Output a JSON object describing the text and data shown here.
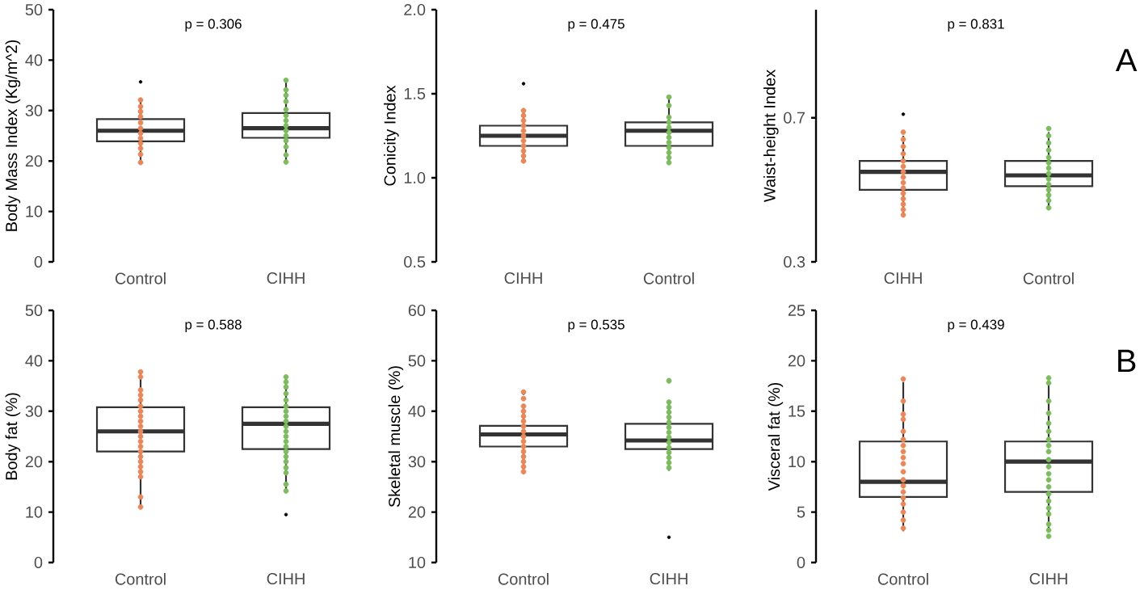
{
  "chart_data": [
    {
      "type": "box",
      "title": "p = 0.306",
      "ylabel": "Body Mass Index (Kg/m^2)",
      "categories": [
        "Control",
        "CIHH"
      ],
      "ylim": [
        0,
        50
      ],
      "yticks": [
        0,
        10,
        20,
        30,
        40,
        50
      ],
      "marker": "circle",
      "boxes": [
        {
          "low": 19.8,
          "q1": 23.9,
          "median": 26.0,
          "q3": 28.3,
          "high": 32.1,
          "outliers": [
            35.7
          ]
        },
        {
          "low": 19.7,
          "q1": 24.6,
          "median": 26.5,
          "q3": 29.5,
          "high": 36.1
        }
      ],
      "series": [
        {
          "type": "scatter",
          "color": "#e8875a",
          "x": [
            "Control",
            "Control",
            "Control",
            "Control",
            "Control",
            "Control",
            "Control",
            "Control",
            "Control",
            "Control",
            "Control",
            "Control"
          ],
          "values": [
            32.1,
            30.8,
            29.8,
            28.8,
            27.6,
            26.5,
            25.5,
            24.5,
            23.5,
            22.5,
            21.3,
            19.7
          ]
        },
        {
          "type": "scatter",
          "color": "#7dbb5f",
          "x": [
            "CIHH",
            "CIHH",
            "CIHH",
            "CIHH",
            "CIHH",
            "CIHH",
            "CIHH",
            "CIHH",
            "CIHH",
            "CIHH",
            "CIHH",
            "CIHH",
            "CIHH",
            "CIHH"
          ],
          "values": [
            36.0,
            34.1,
            33.0,
            31.8,
            30.2,
            29.0,
            28.0,
            27.0,
            26.0,
            25.0,
            24.0,
            22.8,
            21.2,
            19.8
          ]
        }
      ]
    },
    {
      "type": "box",
      "title": "p = 0.475",
      "ylabel": "Conicity Index",
      "categories": [
        "CIHH",
        "Control"
      ],
      "ylim": [
        0.5,
        2.0
      ],
      "yticks": [
        0.5,
        {
          "value": 1,
          "label": "1.0"
        },
        1.5,
        {
          "value": 2,
          "label": "2.0"
        }
      ],
      "marker": "circle",
      "boxes": [
        {
          "low": 1.1,
          "q1": 1.19,
          "median": 1.25,
          "q3": 1.31,
          "high": 1.4,
          "outliers": [
            1.56
          ]
        },
        {
          "low": 1.1,
          "q1": 1.19,
          "median": 1.28,
          "q3": 1.33,
          "high": 1.48
        }
      ],
      "series": [
        {
          "type": "scatter",
          "color": "#e8875a",
          "x": [
            "CIHH",
            "CIHH",
            "CIHH",
            "CIHH",
            "CIHH",
            "CIHH",
            "CIHH",
            "CIHH",
            "CIHH",
            "CIHH",
            "CIHH"
          ],
          "values": [
            1.4,
            1.37,
            1.34,
            1.31,
            1.28,
            1.25,
            1.22,
            1.19,
            1.16,
            1.13,
            1.1
          ]
        },
        {
          "type": "scatter",
          "color": "#7dbb5f",
          "x": [
            "Control",
            "Control",
            "Control",
            "Control",
            "Control",
            "Control",
            "Control",
            "Control",
            "Control",
            "Control",
            "Control",
            "Control"
          ],
          "values": [
            1.48,
            1.43,
            1.36,
            1.33,
            1.3,
            1.27,
            1.24,
            1.21,
            1.18,
            1.15,
            1.12,
            1.09
          ]
        }
      ]
    },
    {
      "type": "box",
      "title": "p = 0.831",
      "ylabel": "Waist-height Index",
      "categories": [
        "CIHH",
        "Control"
      ],
      "ylim": [
        0.3,
        1.0
      ],
      "yticks": [
        0.3,
        0.7
      ],
      "marker": "circle",
      "annotations": [
        "A"
      ],
      "boxes": [
        {
          "low": 0.43,
          "q1": 0.5,
          "median": 0.55,
          "q3": 0.58,
          "high": 0.65,
          "outliers": [
            0.71
          ]
        },
        {
          "low": 0.45,
          "q1": 0.51,
          "median": 0.54,
          "q3": 0.58,
          "high": 0.66
        }
      ],
      "series": [
        {
          "type": "scatter",
          "color": "#e8875a",
          "x": [
            "CIHH",
            "CIHH",
            "CIHH",
            "CIHH",
            "CIHH",
            "CIHH",
            "CIHH",
            "CIHH",
            "CIHH",
            "CIHH",
            "CIHH",
            "CIHH",
            "CIHH",
            "CIHH",
            "CIHH"
          ],
          "values": [
            0.66,
            0.64,
            0.62,
            0.6,
            0.58,
            0.565,
            0.55,
            0.535,
            0.52,
            0.505,
            0.49,
            0.475,
            0.46,
            0.445,
            0.43
          ]
        },
        {
          "type": "scatter",
          "color": "#7dbb5f",
          "x": [
            "Control",
            "Control",
            "Control",
            "Control",
            "Control",
            "Control",
            "Control",
            "Control",
            "Control",
            "Control",
            "Control",
            "Control",
            "Control",
            "Control"
          ],
          "values": [
            0.67,
            0.65,
            0.63,
            0.61,
            0.59,
            0.575,
            0.56,
            0.545,
            0.53,
            0.515,
            0.5,
            0.485,
            0.47,
            0.45
          ]
        }
      ]
    },
    {
      "type": "box",
      "title": "p = 0.588",
      "ylabel": "Body fat (%)",
      "categories": [
        "Control",
        "CIHH"
      ],
      "ylim": [
        0,
        50
      ],
      "yticks": [
        0,
        10,
        20,
        30,
        40,
        50
      ],
      "marker": "circle",
      "boxes": [
        {
          "low": 11.0,
          "q1": 22.0,
          "median": 26.0,
          "q3": 30.8,
          "high": 37.8
        },
        {
          "low": 14.5,
          "q1": 22.5,
          "median": 27.5,
          "q3": 30.8,
          "high": 36.8,
          "outliers": [
            9.5
          ]
        }
      ],
      "series": [
        {
          "type": "scatter",
          "color": "#e8875a",
          "x": [
            "Control",
            "Control",
            "Control",
            "Control",
            "Control",
            "Control",
            "Control",
            "Control",
            "Control",
            "Control",
            "Control",
            "Control",
            "Control",
            "Control",
            "Control",
            "Control",
            "Control",
            "Control",
            "Control",
            "Control",
            "Control",
            "Control"
          ],
          "values": [
            37.8,
            36.8,
            34.2,
            33.2,
            32.2,
            31.0,
            30.0,
            29.0,
            28.0,
            27.0,
            26.0,
            25.0,
            24.0,
            23.0,
            22.0,
            21.0,
            20.0,
            19.0,
            18.0,
            17.0,
            13.0,
            11.0
          ]
        },
        {
          "type": "scatter",
          "color": "#7dbb5f",
          "x": [
            "CIHH",
            "CIHH",
            "CIHH",
            "CIHH",
            "CIHH",
            "CIHH",
            "CIHH",
            "CIHH",
            "CIHH",
            "CIHH",
            "CIHH",
            "CIHH",
            "CIHH",
            "CIHH",
            "CIHH",
            "CIHH",
            "CIHH",
            "CIHH",
            "CIHH",
            "CIHH",
            "CIHH"
          ],
          "values": [
            36.8,
            35.8,
            34.8,
            33.5,
            32.2,
            31.0,
            30.0,
            29.0,
            28.0,
            27.0,
            26.0,
            25.0,
            24.0,
            23.0,
            22.0,
            21.0,
            20.0,
            18.8,
            17.8,
            15.5,
            14.2
          ]
        }
      ]
    },
    {
      "type": "box",
      "title": "p = 0.535",
      "ylabel": "Skeletal muscle (%)",
      "categories": [
        "Control",
        "CIHH"
      ],
      "ylim": [
        10,
        60
      ],
      "yticks": [
        10,
        20,
        30,
        40,
        50,
        60
      ],
      "marker": "circle",
      "boxes": [
        {
          "low": 28.2,
          "q1": 33.0,
          "median": 35.4,
          "q3": 37.1,
          "high": 41.0,
          "outliers": [
            43.6
          ]
        },
        {
          "low": 28.2,
          "q1": 32.5,
          "median": 34.2,
          "q3": 37.5,
          "high": 41.6,
          "outliers": [
            46.2,
            15.0
          ]
        }
      ],
      "series": [
        {
          "type": "scatter",
          "color": "#e8875a",
          "x": [
            "Control",
            "Control",
            "Control",
            "Control",
            "Control",
            "Control",
            "Control",
            "Control",
            "Control",
            "Control",
            "Control",
            "Control",
            "Control",
            "Control",
            "Control",
            "Control"
          ],
          "values": [
            43.8,
            42.5,
            41.0,
            40.0,
            39.0,
            38.0,
            37.0,
            36.0,
            35.0,
            34.0,
            33.0,
            32.0,
            31.0,
            30.0,
            29.0,
            28.0
          ]
        },
        {
          "type": "scatter",
          "color": "#7dbb5f",
          "x": [
            "CIHH",
            "CIHH",
            "CIHH",
            "CIHH",
            "CIHH",
            "CIHH",
            "CIHH",
            "CIHH",
            "CIHH",
            "CIHH",
            "CIHH",
            "CIHH",
            "CIHH",
            "CIHH",
            "CIHH"
          ],
          "values": [
            46.0,
            41.8,
            40.8,
            39.8,
            38.8,
            37.8,
            36.8,
            35.8,
            34.8,
            33.8,
            32.8,
            31.8,
            30.8,
            29.8,
            28.8
          ]
        }
      ]
    },
    {
      "type": "box",
      "title": "p = 0.439",
      "ylabel": "Visceral fat (%)",
      "categories": [
        "Control",
        "CIHH"
      ],
      "ylim": [
        0,
        25
      ],
      "yticks": [
        0,
        5,
        10,
        15,
        20,
        25
      ],
      "marker": "circle",
      "annotations": [
        "B"
      ],
      "boxes": [
        {
          "low": 3.1,
          "q1": 6.5,
          "median": 8.0,
          "q3": 12.0,
          "high": 17.9
        },
        {
          "low": 3.1,
          "q1": 7.0,
          "median": 10.0,
          "q3": 12.0,
          "high": 17.9
        }
      ],
      "series": [
        {
          "type": "scatter",
          "color": "#e8875a",
          "x": [
            "Control",
            "Control",
            "Control",
            "Control",
            "Control",
            "Control",
            "Control",
            "Control",
            "Control",
            "Control",
            "Control",
            "Control",
            "Control",
            "Control",
            "Control",
            "Control",
            "Control",
            "Control",
            "Control"
          ],
          "values": [
            18.2,
            16.0,
            14.7,
            14.2,
            13.0,
            12.2,
            11.6,
            11.0,
            10.4,
            9.8,
            9.0,
            8.2,
            7.6,
            7.0,
            6.4,
            5.8,
            5.0,
            4.2,
            3.4
          ]
        },
        {
          "type": "scatter",
          "color": "#7dbb5f",
          "x": [
            "CIHH",
            "CIHH",
            "CIHH",
            "CIHH",
            "CIHH",
            "CIHH",
            "CIHH",
            "CIHH",
            "CIHH",
            "CIHH",
            "CIHH",
            "CIHH",
            "CIHH",
            "CIHH",
            "CIHH",
            "CIHH",
            "CIHH",
            "CIHH",
            "CIHH",
            "CIHH",
            "CIHH"
          ],
          "values": [
            18.3,
            17.8,
            16.0,
            14.8,
            13.8,
            13.0,
            12.2,
            11.6,
            11.0,
            10.2,
            9.5,
            8.8,
            8.2,
            7.5,
            6.8,
            6.1,
            5.4,
            4.8,
            3.8,
            3.2,
            2.6
          ]
        }
      ]
    }
  ]
}
